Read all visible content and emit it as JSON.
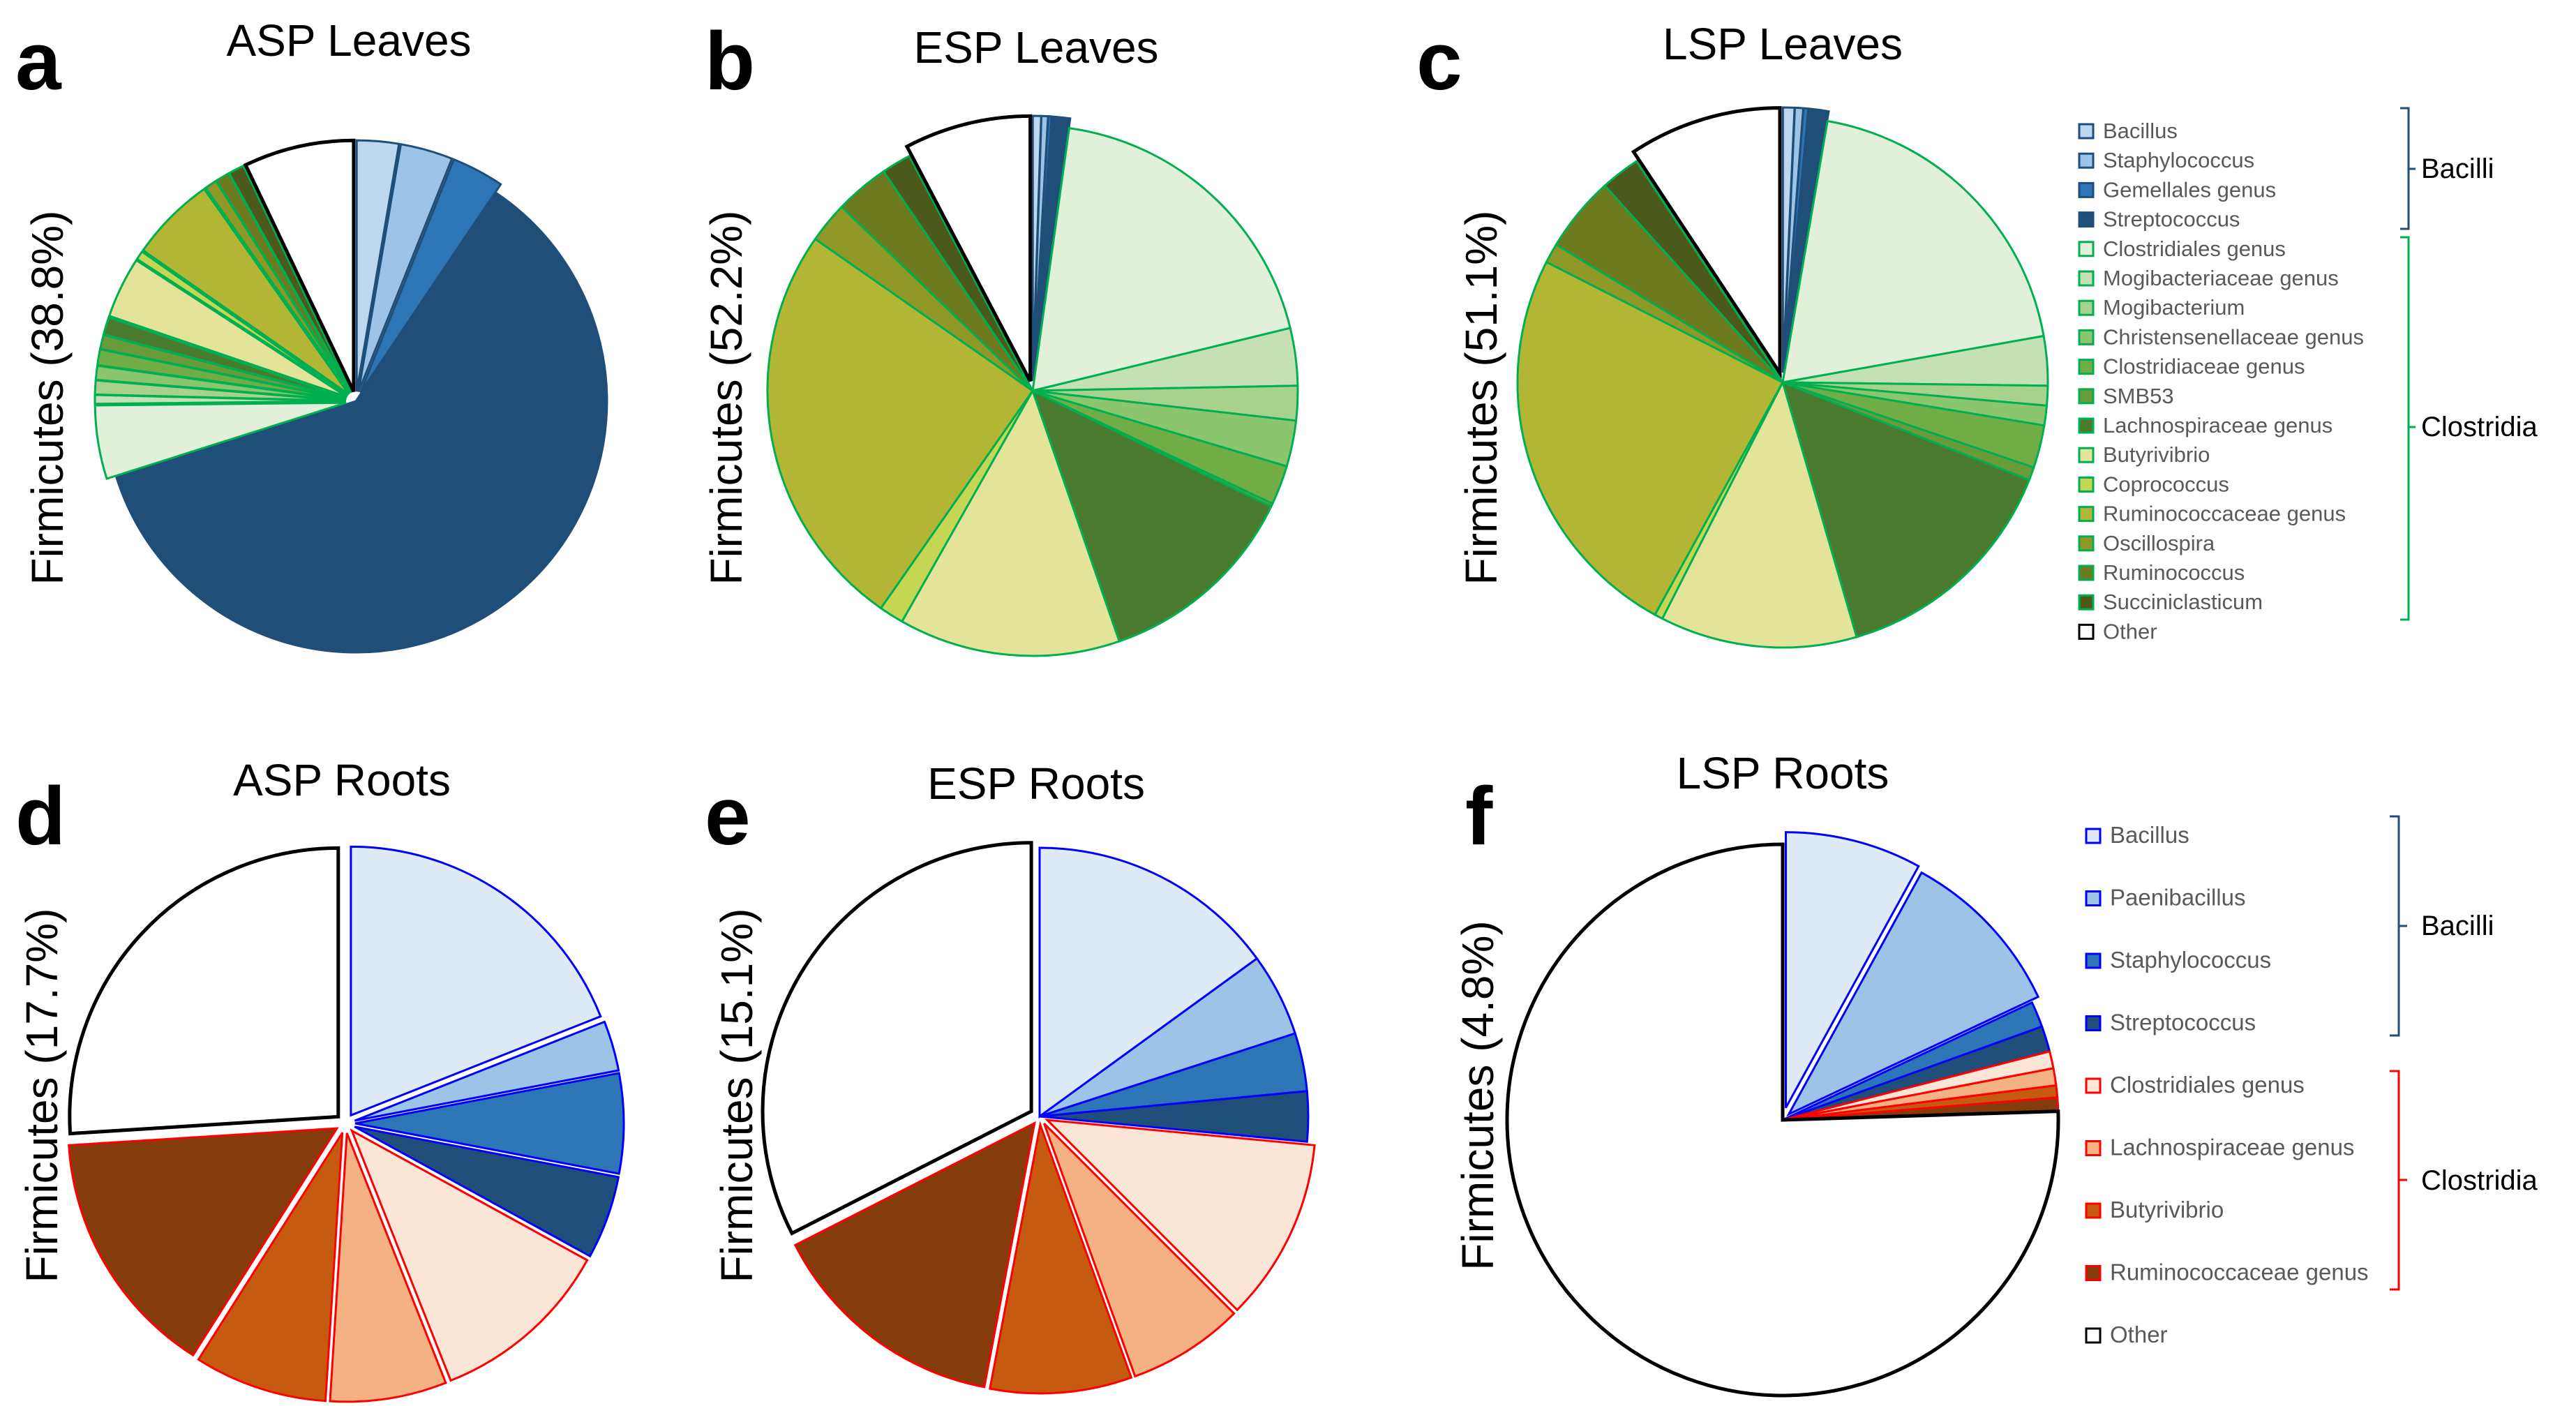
{
  "colors": {
    "bacilli_leaves": [
      "#bdd7ee",
      "#9dc3e6",
      "#2e75b6",
      "#1f4e79"
    ],
    "clostridia_leaves": [
      "#e2f0d9",
      "#c5e0b4",
      "#a9d18e",
      "#8bc66e",
      "#70ad47",
      "#6a9b3a",
      "#4a7a2e",
      "#e3e49a",
      "#c5d655",
      "#b3b534",
      "#8f9826",
      "#6d7a20",
      "#4b5a1a"
    ],
    "leaves_stroke_bacilli": "#1f4e79",
    "leaves_stroke_clostridia": "#00b050",
    "bacilli_roots": [
      "#deebf7",
      "#9dc3e6",
      "#2e75b6",
      "#1f4e79"
    ],
    "clostridia_roots": [
      "#fbe5d6",
      "#f4b183",
      "#c55a11",
      "#843c0c"
    ],
    "roots_stroke_bacilli": "#0000ff",
    "roots_stroke_clostridia": "#ff0000",
    "bracket_bacilli": "#1f4e79",
    "bracket_clostridia_leaves": "#00b050",
    "bracket_clostridia_roots": "#ff0000"
  },
  "chart_data": [
    {
      "type": "pie",
      "panel": "a",
      "title": "ASP Leaves",
      "ylabel": "Firmicutes (38.8%)",
      "slices": [
        {
          "label": "Bacillus",
          "value": 2.4
        },
        {
          "label": "Staphylococcus",
          "value": 3.0
        },
        {
          "label": "Gemellales genus",
          "value": 3.0
        },
        {
          "label": "Streptococcus",
          "value": 54.0
        },
        {
          "label": "Clostridiales genus",
          "value": 4.2
        },
        {
          "label": "Mogibacteriaceae genus",
          "value": 0.5
        },
        {
          "label": "Mogibacterium",
          "value": 0.8
        },
        {
          "label": "Christensenellaceae genus",
          "value": 0.8
        },
        {
          "label": "Clostridiaceae genus",
          "value": 0.9
        },
        {
          "label": "SMB53",
          "value": 0.8
        },
        {
          "label": "Lachnospiraceae genus",
          "value": 1.0
        },
        {
          "label": "Butyrivibrio",
          "value": 3.5
        },
        {
          "label": "Coprococcus",
          "value": 0.5
        },
        {
          "label": "Ruminococcaceae genus",
          "value": 4.9
        },
        {
          "label": "Oscillospira",
          "value": 0.7
        },
        {
          "label": "Ruminococcus",
          "value": 0.8
        },
        {
          "label": "Succiniclasticum",
          "value": 0.9
        },
        {
          "label": "Other",
          "value": 6.3
        }
      ]
    },
    {
      "type": "pie",
      "panel": "b",
      "title": "ESP Leaves",
      "ylabel": "Firmicutes (52.2%)",
      "slices": [
        {
          "label": "Bacillus",
          "value": 0.5
        },
        {
          "label": "Staphylococcus",
          "value": 0.4
        },
        {
          "label": "Gemellales genus",
          "value": 0.2
        },
        {
          "label": "Streptococcus",
          "value": 1.1
        },
        {
          "label": "Clostridiales genus",
          "value": 19.0
        },
        {
          "label": "Mogibacteriaceae genus",
          "value": 3.5
        },
        {
          "label": "Mogibacterium",
          "value": 2.1
        },
        {
          "label": "Christensenellaceae genus",
          "value": 2.8
        },
        {
          "label": "Clostridiaceae genus",
          "value": 2.4
        },
        {
          "label": "SMB53",
          "value": 0.2
        },
        {
          "label": "Lachnospiraceae genus",
          "value": 12.5
        },
        {
          "label": "Butyrivibrio",
          "value": 13.5
        },
        {
          "label": "Coprococcus",
          "value": 1.5
        },
        {
          "label": "Ruminococcaceae genus",
          "value": 25.0
        },
        {
          "label": "Oscillospira",
          "value": 2.5
        },
        {
          "label": "Ruminococcus",
          "value": 3.3
        },
        {
          "label": "Succiniclasticum",
          "value": 1.8
        },
        {
          "label": "Other",
          "value": 7.7
        }
      ]
    },
    {
      "type": "pie",
      "panel": "c",
      "title": "LSP Leaves",
      "ylabel": "Firmicutes (51.1%)",
      "slices": [
        {
          "label": "Bacillus",
          "value": 0.7
        },
        {
          "label": "Staphylococcus",
          "value": 0.5
        },
        {
          "label": "Gemellales genus",
          "value": 0.3
        },
        {
          "label": "Streptococcus",
          "value": 1.2
        },
        {
          "label": "Clostridiales genus",
          "value": 19.5
        },
        {
          "label": "Mogibacteriaceae genus",
          "value": 3.0
        },
        {
          "label": "Mogibacterium",
          "value": 1.2
        },
        {
          "label": "Christensenellaceae genus",
          "value": 1.2
        },
        {
          "label": "Clostridiaceae genus",
          "value": 2.6
        },
        {
          "label": "SMB53",
          "value": 0.8
        },
        {
          "label": "Lachnospiraceae genus",
          "value": 14.5
        },
        {
          "label": "Butyrivibrio",
          "value": 12.0
        },
        {
          "label": "Coprococcus",
          "value": 0.5
        },
        {
          "label": "Ruminococcaceae genus",
          "value": 24.5
        },
        {
          "label": "Oscillospira",
          "value": 1.2
        },
        {
          "label": "Ruminococcus",
          "value": 4.6
        },
        {
          "label": "Succiniclasticum",
          "value": 2.4
        },
        {
          "label": "Other",
          "value": 9.3
        }
      ]
    },
    {
      "type": "pie",
      "panel": "d",
      "title": "ASP Roots",
      "ylabel": "Firmicutes (17.7%)",
      "slices": [
        {
          "label": "Bacillus",
          "value": 19.0
        },
        {
          "label": "Paenibacillus",
          "value": 3.0
        },
        {
          "label": "Staphylococcus",
          "value": 6.0
        },
        {
          "label": "Streptococcus",
          "value": 5.0
        },
        {
          "label": "Clostridiales genus",
          "value": 11.0
        },
        {
          "label": "Lachnospiraceae genus",
          "value": 7.0
        },
        {
          "label": "Butyrivibrio",
          "value": 8.0
        },
        {
          "label": "Ruminococcaceae genus",
          "value": 15.0
        },
        {
          "label": "Other",
          "value": 26.0
        }
      ]
    },
    {
      "type": "pie",
      "panel": "e",
      "title": "ESP Roots",
      "ylabel": "Firmicutes (15.1%)",
      "slices": [
        {
          "label": "Bacillus",
          "value": 15.0
        },
        {
          "label": "Paenibacillus",
          "value": 5.0
        },
        {
          "label": "Staphylococcus",
          "value": 3.5
        },
        {
          "label": "Streptococcus",
          "value": 3.0
        },
        {
          "label": "Clostridiales genus",
          "value": 11.0
        },
        {
          "label": "Lachnospiraceae genus",
          "value": 7.0
        },
        {
          "label": "Butyrivibrio",
          "value": 8.5
        },
        {
          "label": "Ruminococcaceae genus",
          "value": 14.5
        },
        {
          "label": "Other",
          "value": 32.5
        }
      ]
    },
    {
      "type": "pie",
      "panel": "f",
      "title": "LSP Roots",
      "ylabel": "Firmicutes (4.8%)",
      "slices": [
        {
          "label": "Bacillus",
          "value": 8.0
        },
        {
          "label": "Paenibacillus",
          "value": 10.0
        },
        {
          "label": "Staphylococcus",
          "value": 1.5
        },
        {
          "label": "Streptococcus",
          "value": 1.5
        },
        {
          "label": "Clostridiales genus",
          "value": 1.0
        },
        {
          "label": "Lachnospiraceae genus",
          "value": 1.0
        },
        {
          "label": "Butyrivibrio",
          "value": 0.7
        },
        {
          "label": "Ruminococcaceae genus",
          "value": 0.8
        },
        {
          "label": "Other",
          "value": 75.5
        }
      ]
    }
  ],
  "legend_leaves": {
    "items": [
      "Bacillus",
      "Staphylococcus",
      "Gemellales genus",
      "Streptococcus",
      "Clostridiales genus",
      "Mogibacteriaceae genus",
      "Mogibacterium",
      "Christensenellaceae genus",
      "Clostridiaceae genus",
      "SMB53",
      "Lachnospiraceae genus",
      "Butyrivibrio",
      "Coprococcus",
      "Ruminococcaceae genus",
      "Oscillospira",
      "Ruminococcus",
      "Succiniclasticum",
      "Other"
    ],
    "class_bacilli": "Bacilli",
    "class_clostridia": "Clostridia"
  },
  "legend_roots": {
    "items": [
      "Bacillus",
      "Paenibacillus",
      "Staphylococcus",
      "Streptococcus",
      "Clostridiales genus",
      "Lachnospiraceae genus",
      "Butyrivibrio",
      "Ruminococcaceae genus",
      "Other"
    ],
    "class_bacilli": "Bacilli",
    "class_clostridia": "Clostridia"
  }
}
